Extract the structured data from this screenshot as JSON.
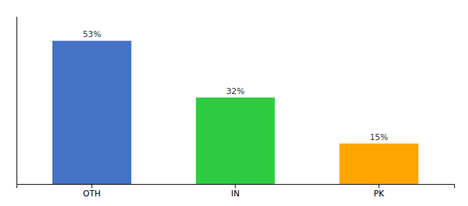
{
  "chart_data": {
    "type": "bar",
    "categories": [
      "OTH",
      "IN",
      "PK"
    ],
    "values": [
      53,
      32,
      15
    ],
    "value_labels": [
      "53%",
      "32%",
      "15%"
    ],
    "colors": [
      "#4472C4",
      "#2ECC40",
      "#FFA500"
    ],
    "ylim": [
      0,
      62
    ],
    "data_labels": true,
    "tick_labels": "x"
  }
}
